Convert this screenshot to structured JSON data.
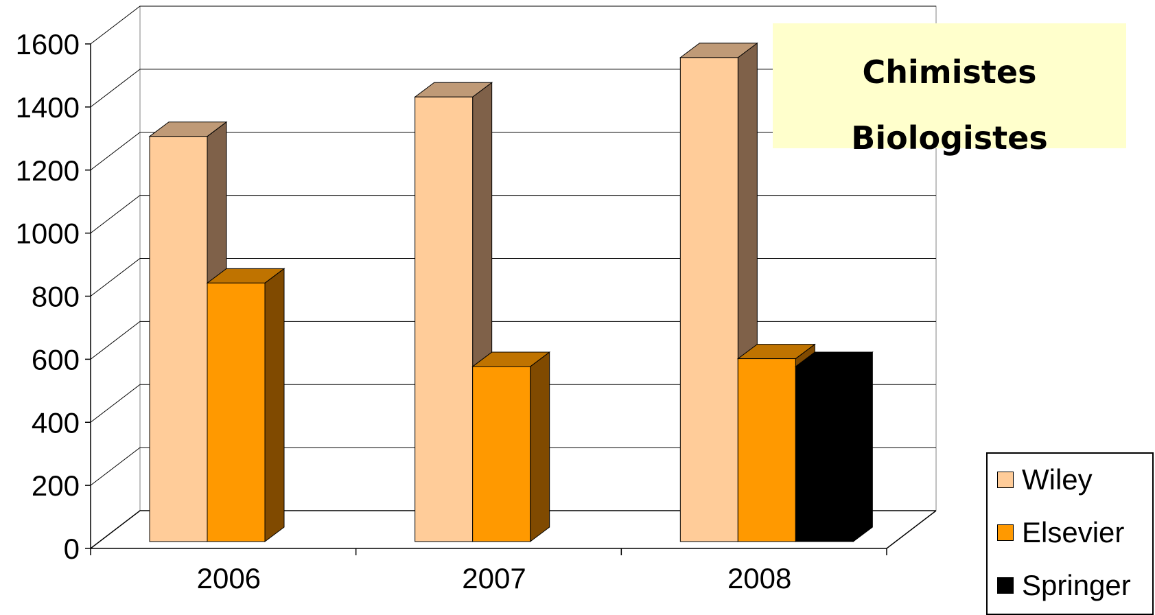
{
  "chart_data": {
    "type": "bar",
    "style": "3d-clustered-column",
    "categories": [
      "2006",
      "2007",
      "2008"
    ],
    "series": [
      {
        "name": "Wiley",
        "values": [
          1285,
          1410,
          1535
        ],
        "color": "#ffcc99",
        "side_color": "#7f6149",
        "top_color": "#bf9a77"
      },
      {
        "name": "Elsevier",
        "values": [
          820,
          555,
          580
        ],
        "color": "#ff9900",
        "side_color": "#804a00",
        "top_color": "#bf7300"
      },
      {
        "name": "Springer",
        "values": [
          null,
          null,
          555
        ],
        "color": "#000000",
        "side_color": "#000000",
        "top_color": "#000000"
      }
    ],
    "y_ticks": [
      "0",
      "200",
      "400",
      "600",
      "800",
      "1000",
      "1200",
      "1400",
      "1600"
    ],
    "ylim": [
      0,
      1600
    ],
    "grid": true,
    "legend_position": "bottom-right",
    "annotation": {
      "lines": [
        "Chimistes",
        "Biologistes"
      ],
      "background": "#ffffcc"
    },
    "title": "",
    "xlabel": "",
    "ylabel": ""
  }
}
